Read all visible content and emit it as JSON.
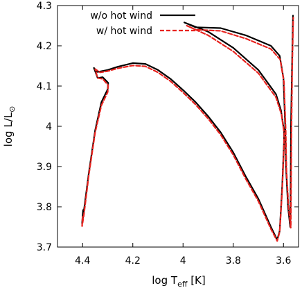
{
  "chart_data": {
    "type": "line",
    "title": "",
    "xlabel": {
      "main": "log T",
      "sub": "eff",
      "tail": " [K]"
    },
    "ylabel": {
      "main": "log L/L",
      "sub": "⊙"
    },
    "xlim": [
      4.5,
      3.54
    ],
    "ylim": [
      3.7,
      4.3
    ],
    "x_reversed": true,
    "x_ticks": [
      4.4,
      4.2,
      4.0,
      3.8,
      3.6
    ],
    "x_tick_labels": [
      "4.4",
      "4.2",
      "4",
      "3.8",
      "3.6"
    ],
    "y_ticks": [
      3.7,
      3.8,
      3.9,
      4.0,
      4.1,
      4.2,
      4.3
    ],
    "y_tick_labels": [
      "3.7",
      "3.8",
      "3.9",
      "4",
      "4.1",
      "4.2",
      "4.3"
    ],
    "grid": false,
    "legend_position": "top-right",
    "series": [
      {
        "name": "w/o hot wind",
        "color": "#000000",
        "dash": "solid",
        "points": [
          [
            4.398,
            3.792
          ],
          [
            4.4,
            3.775
          ],
          [
            4.402,
            3.758
          ],
          [
            4.395,
            3.79
          ],
          [
            4.375,
            3.885
          ],
          [
            4.35,
            3.99
          ],
          [
            4.325,
            4.06
          ],
          [
            4.3,
            4.092
          ],
          [
            4.298,
            4.108
          ],
          [
            4.32,
            4.122
          ],
          [
            4.34,
            4.12
          ],
          [
            4.355,
            4.145
          ],
          [
            4.34,
            4.135
          ],
          [
            4.3,
            4.14
          ],
          [
            4.26,
            4.148
          ],
          [
            4.2,
            4.157
          ],
          [
            4.15,
            4.155
          ],
          [
            4.1,
            4.14
          ],
          [
            4.05,
            4.118
          ],
          [
            4.0,
            4.09
          ],
          [
            3.95,
            4.06
          ],
          [
            3.9,
            4.025
          ],
          [
            3.85,
            3.985
          ],
          [
            3.8,
            3.935
          ],
          [
            3.75,
            3.875
          ],
          [
            3.7,
            3.82
          ],
          [
            3.65,
            3.75
          ],
          [
            3.625,
            3.718
          ],
          [
            3.615,
            3.74
          ],
          [
            3.605,
            3.85
          ],
          [
            3.598,
            3.96
          ],
          [
            3.598,
            3.99
          ],
          [
            3.61,
            4.04
          ],
          [
            3.63,
            4.08
          ],
          [
            3.7,
            4.14
          ],
          [
            3.8,
            4.195
          ],
          [
            3.9,
            4.235
          ],
          [
            3.995,
            4.258
          ],
          [
            3.95,
            4.246
          ],
          [
            3.85,
            4.244
          ],
          [
            3.75,
            4.226
          ],
          [
            3.65,
            4.2
          ],
          [
            3.615,
            4.175
          ],
          [
            3.6,
            4.12
          ],
          [
            3.593,
            4.0
          ],
          [
            3.59,
            3.9
          ],
          [
            3.582,
            3.8
          ],
          [
            3.573,
            3.75
          ],
          [
            3.572,
            3.8
          ],
          [
            3.57,
            4.0
          ],
          [
            3.566,
            4.15
          ],
          [
            3.562,
            4.275
          ]
        ]
      },
      {
        "name": "w/ hot wind",
        "color": "#e8231f",
        "dash": "dashed",
        "points": [
          [
            4.4,
            3.775
          ],
          [
            4.402,
            3.752
          ],
          [
            4.395,
            3.78
          ],
          [
            4.375,
            3.88
          ],
          [
            4.35,
            3.985
          ],
          [
            4.325,
            4.052
          ],
          [
            4.3,
            4.085
          ],
          [
            4.298,
            4.102
          ],
          [
            4.32,
            4.118
          ],
          [
            4.34,
            4.12
          ],
          [
            4.35,
            4.142
          ],
          [
            4.33,
            4.134
          ],
          [
            4.3,
            4.137
          ],
          [
            4.26,
            4.144
          ],
          [
            4.2,
            4.151
          ],
          [
            4.15,
            4.149
          ],
          [
            4.1,
            4.134
          ],
          [
            4.05,
            4.112
          ],
          [
            4.0,
            4.084
          ],
          [
            3.95,
            4.054
          ],
          [
            3.9,
            4.019
          ],
          [
            3.85,
            3.979
          ],
          [
            3.8,
            3.929
          ],
          [
            3.75,
            3.869
          ],
          [
            3.7,
            3.814
          ],
          [
            3.65,
            3.745
          ],
          [
            3.625,
            3.715
          ],
          [
            3.615,
            3.738
          ],
          [
            3.605,
            3.84
          ],
          [
            3.598,
            3.95
          ],
          [
            3.597,
            3.982
          ],
          [
            3.608,
            4.03
          ],
          [
            3.63,
            4.072
          ],
          [
            3.7,
            4.132
          ],
          [
            3.8,
            4.186
          ],
          [
            3.9,
            4.226
          ],
          [
            3.985,
            4.25
          ],
          [
            3.95,
            4.24
          ],
          [
            3.85,
            4.237
          ],
          [
            3.75,
            4.218
          ],
          [
            3.65,
            4.192
          ],
          [
            3.613,
            4.166
          ],
          [
            3.598,
            4.11
          ],
          [
            3.591,
            3.99
          ],
          [
            3.588,
            3.89
          ],
          [
            3.58,
            3.8
          ],
          [
            3.571,
            3.748
          ],
          [
            3.57,
            3.8
          ],
          [
            3.568,
            4.0
          ],
          [
            3.565,
            4.15
          ],
          [
            3.561,
            4.27
          ]
        ]
      }
    ]
  }
}
